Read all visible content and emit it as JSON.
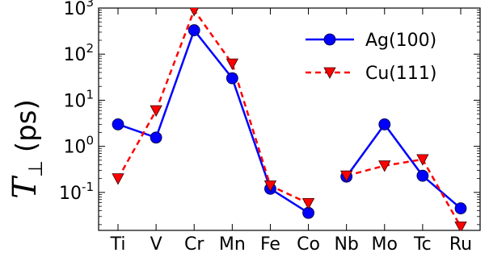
{
  "chart_data": {
    "type": "line",
    "yscale": "log",
    "ylim": [
      0.015,
      1000
    ],
    "categories": [
      "Ti",
      "V",
      "Cr",
      "Mn",
      "Fe",
      "Co",
      "Nb",
      "Mo",
      "Tc",
      "Ru"
    ],
    "ylabel": {
      "symbol": "T",
      "subscript": "⊥",
      "unit": "(ps)"
    },
    "y_tick_labels": [
      {
        "base": "10",
        "exp": "-1",
        "value": 0.1
      },
      {
        "base": "10",
        "exp": "0",
        "value": 1
      },
      {
        "base": "10",
        "exp": "1",
        "value": 10
      },
      {
        "base": "10",
        "exp": "2",
        "value": 100
      },
      {
        "base": "10",
        "exp": "3",
        "value": 1000
      }
    ],
    "grid": false,
    "legend_position": "top-right",
    "series": [
      {
        "name": "Ag(100)",
        "color": "#0000ff",
        "line_style": "solid",
        "marker": "circle",
        "values": [
          3.0,
          1.55,
          330,
          30,
          0.12,
          0.036,
          0.22,
          3.0,
          0.23,
          0.045
        ],
        "segments": [
          [
            0,
            5
          ],
          [
            6,
            9
          ]
        ]
      },
      {
        "name": "Cu(111)",
        "color": "#ff0000",
        "line_style": "dashed",
        "marker": "triangle-down",
        "values": [
          0.2,
          6.0,
          900,
          62,
          0.14,
          0.058,
          0.23,
          0.38,
          0.52,
          0.018
        ],
        "segments": [
          [
            0,
            5
          ],
          [
            6,
            9
          ]
        ]
      }
    ]
  }
}
